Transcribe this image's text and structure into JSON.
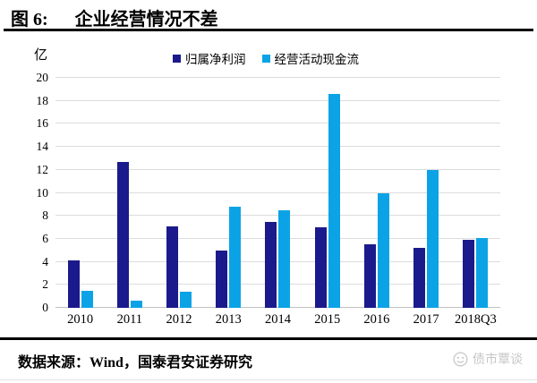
{
  "header": {
    "figure_label": "图 6:",
    "title": "企业经营情况不差"
  },
  "chart_data": {
    "type": "bar",
    "title": "企业经营情况不差",
    "unit_label": "亿",
    "categories": [
      "2010",
      "2011",
      "2012",
      "2013",
      "2014",
      "2015",
      "2016",
      "2017",
      "2018Q3"
    ],
    "series": [
      {
        "name": "归属净利润",
        "color": "#1a1a8c",
        "values": [
          4.1,
          12.7,
          7.1,
          5.0,
          7.5,
          7.0,
          5.5,
          5.2,
          5.9
        ]
      },
      {
        "name": "经营活动现金流",
        "color": "#0ba3e6",
        "values": [
          1.5,
          0.6,
          1.4,
          8.8,
          8.5,
          18.6,
          10.0,
          12.0,
          6.1
        ]
      }
    ],
    "ylim": [
      0,
      20
    ],
    "ytick_step": 2,
    "grid": true,
    "legend_position": "top",
    "gridline_color": "#dcdcdc"
  },
  "footer": {
    "source": "数据来源：Wind，国泰君安证券研究",
    "watermark": "债市覃谈"
  }
}
